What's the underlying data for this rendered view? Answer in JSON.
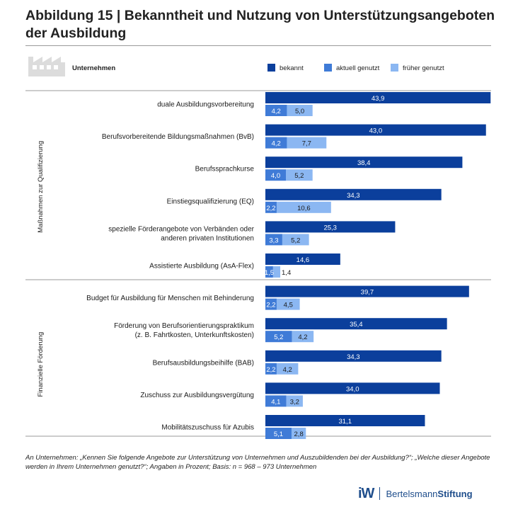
{
  "title": "Abbildung 15 | Bekanntheit und Nutzung von Unterstützungsangeboten der Ausbildung",
  "footnote": "An Unternehmen: „Kennen Sie folgende Angebote zur Unterstützung von Unternehmen und Auszubildenden bei der Ausbildung?“; „Welche dieser Angebote werden in Ihrem Unternehmen genutzt?“; Angaben in Prozent; Basis: n = 968 – 973 Unternehmen",
  "logos": {
    "iw": "iW",
    "bertelsmann_regular": "Bertelsmann",
    "bertelsmann_bold": "Stiftung"
  },
  "header": {
    "group_label": "Unternehmen",
    "group_icon": "factory-icon"
  },
  "colors": {
    "bekannt": "#0b3f9c",
    "aktuell": "#3f7bd7",
    "frueher": "#8bb7f2"
  },
  "chart_data": {
    "type": "bar",
    "orientation": "horizontal",
    "title": "Bekanntheit und Nutzung von Unterstützungsangeboten der Ausbildung",
    "unit": "Prozent",
    "xlim": [
      0,
      44
    ],
    "legend": [
      "bekannt",
      "aktuell genutzt",
      "früher genutzt"
    ],
    "legend_position": "top-right",
    "groups": [
      {
        "name": "Maßnahmen zur Qualifizierung",
        "start": 0,
        "end": 5
      },
      {
        "name": "Finanzielle Förderung",
        "start": 6,
        "end": 10
      }
    ],
    "categories": [
      [
        "duale Ausbildungsvorbereitung"
      ],
      [
        "Berufsvorbereitende Bildungsmaßnahmen (BvB)"
      ],
      [
        "Berufssprachkurse"
      ],
      [
        "Einstiegsqualifizierung (EQ)"
      ],
      [
        "spezielle Förderangebote von Verbänden oder",
        "anderen privaten Institutionen"
      ],
      [
        "Assistierte Ausbildung (AsA-Flex)"
      ],
      [
        "Budget für Ausbildung für Menschen mit Behinderung"
      ],
      [
        "Förderung von Berufsorientierungspraktikum",
        "(z. B. Fahrtkosten, Unterkunftskosten)"
      ],
      [
        "Berufsausbildungsbeihilfe (BAB)"
      ],
      [
        "Zuschuss zur Ausbildungsvergütung"
      ],
      [
        "Mobilitätszuschuss für Azubis"
      ]
    ],
    "series": [
      {
        "name": "bekannt",
        "values": [
          43.9,
          43.0,
          38.4,
          34.3,
          25.3,
          14.6,
          39.7,
          35.4,
          34.3,
          34.0,
          31.1
        ],
        "labels": [
          "43,9",
          "43,0",
          "38,4",
          "34,3",
          "25,3",
          "14,6",
          "39,7",
          "35,4",
          "34,3",
          "34,0",
          "31,1"
        ]
      },
      {
        "name": "aktuell genutzt",
        "values": [
          4.2,
          4.2,
          4.0,
          2.2,
          3.3,
          1.5,
          2.2,
          5.2,
          2.2,
          4.1,
          5.1
        ],
        "labels": [
          "4,2",
          "4,2",
          "4,0",
          "2,2",
          "3,3",
          "1,5",
          "2,2",
          "5,2",
          "2,2",
          "4,1",
          "5,1"
        ]
      },
      {
        "name": "früher genutzt",
        "values": [
          5.0,
          7.7,
          5.2,
          10.6,
          5.2,
          1.4,
          4.5,
          4.2,
          4.2,
          3.2,
          2.8
        ],
        "labels": [
          "5,0",
          "7,7",
          "5,2",
          "10,6",
          "5,2",
          "1,4",
          "4,5",
          "4,2",
          "4,2",
          "3,2",
          "2,8"
        ]
      }
    ]
  }
}
